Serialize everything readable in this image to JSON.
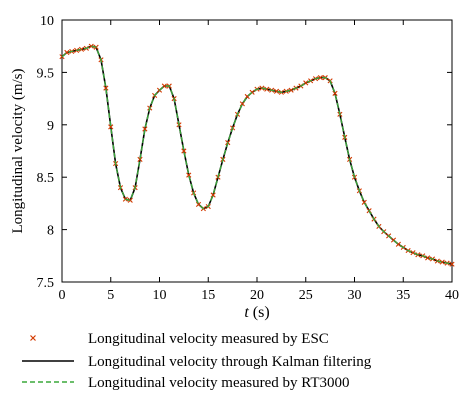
{
  "chart_data": {
    "type": "line",
    "xlabel": "t (s)",
    "xlabel_italic_part": "t",
    "xlabel_rest": " (s)",
    "ylabel": "Longitudinal velocity (m/s)",
    "xlim": [
      0,
      40
    ],
    "ylim": [
      7.5,
      10
    ],
    "xticks": [
      0,
      5,
      10,
      15,
      20,
      25,
      30,
      35,
      40
    ],
    "yticks": [
      7.5,
      8,
      8.5,
      9,
      9.5,
      10
    ],
    "xtick_labels": [
      "0",
      "5",
      "10",
      "15",
      "20",
      "25",
      "30",
      "35",
      "40"
    ],
    "ytick_labels": [
      "7.5",
      "8",
      "8.5",
      "9",
      "9.5",
      "10"
    ],
    "grid": false,
    "legend_position": "bottom",
    "x": [
      0,
      0.5,
      1,
      1.5,
      2,
      2.5,
      3,
      3.5,
      4,
      4.5,
      5,
      5.5,
      6,
      6.5,
      7,
      7.5,
      8,
      8.5,
      9,
      9.5,
      10,
      10.5,
      11,
      11.5,
      12,
      12.5,
      13,
      13.5,
      14,
      14.5,
      15,
      15.5,
      16,
      16.5,
      17,
      17.5,
      18,
      18.5,
      19,
      19.5,
      20,
      20.5,
      21,
      21.5,
      22,
      22.5,
      23,
      23.5,
      24,
      24.5,
      25,
      25.5,
      26,
      26.5,
      27,
      27.5,
      28,
      28.5,
      29,
      29.5,
      30,
      30.5,
      31,
      31.5,
      32,
      32.5,
      33,
      33.5,
      34,
      34.5,
      35,
      35.5,
      36,
      36.5,
      37,
      37.5,
      38,
      38.5,
      39,
      39.5,
      40
    ],
    "series": [
      {
        "name": "Longitudinal velocity measured by ESC",
        "style": "marker-x",
        "color": "#d43a00",
        "values": [
          9.65,
          9.69,
          9.7,
          9.71,
          9.72,
          9.73,
          9.75,
          9.74,
          9.62,
          9.35,
          8.98,
          8.63,
          8.4,
          8.29,
          8.28,
          8.4,
          8.67,
          8.96,
          9.16,
          9.28,
          9.33,
          9.37,
          9.37,
          9.25,
          9.0,
          8.75,
          8.52,
          8.35,
          8.24,
          8.2,
          8.22,
          8.33,
          8.5,
          8.67,
          8.83,
          8.97,
          9.1,
          9.2,
          9.27,
          9.31,
          9.34,
          9.35,
          9.34,
          9.33,
          9.32,
          9.31,
          9.32,
          9.33,
          9.35,
          9.37,
          9.4,
          9.42,
          9.44,
          9.45,
          9.45,
          9.42,
          9.3,
          9.1,
          8.88,
          8.67,
          8.5,
          8.37,
          8.26,
          8.18,
          8.1,
          8.03,
          7.98,
          7.94,
          7.9,
          7.86,
          7.83,
          7.8,
          7.78,
          7.76,
          7.75,
          7.73,
          7.72,
          7.7,
          7.69,
          7.68,
          7.67
        ]
      },
      {
        "name": "Longitudinal velocity through Kalman filtering",
        "style": "solid",
        "color": "#000000",
        "values": [
          9.65,
          9.69,
          9.7,
          9.71,
          9.72,
          9.73,
          9.75,
          9.74,
          9.62,
          9.35,
          8.98,
          8.63,
          8.4,
          8.29,
          8.28,
          8.4,
          8.67,
          8.96,
          9.16,
          9.28,
          9.33,
          9.37,
          9.37,
          9.25,
          9.0,
          8.75,
          8.52,
          8.35,
          8.24,
          8.2,
          8.22,
          8.33,
          8.5,
          8.67,
          8.83,
          8.97,
          9.1,
          9.2,
          9.27,
          9.31,
          9.34,
          9.35,
          9.34,
          9.33,
          9.32,
          9.31,
          9.32,
          9.33,
          9.35,
          9.37,
          9.4,
          9.42,
          9.44,
          9.45,
          9.45,
          9.42,
          9.3,
          9.1,
          8.88,
          8.67,
          8.5,
          8.37,
          8.26,
          8.18,
          8.1,
          8.03,
          7.98,
          7.94,
          7.9,
          7.86,
          7.83,
          7.8,
          7.78,
          7.76,
          7.75,
          7.73,
          7.72,
          7.7,
          7.69,
          7.68,
          7.67
        ]
      },
      {
        "name": "Longitudinal velocity measured by RT3000",
        "style": "dashed",
        "color": "#3aa83a",
        "values": [
          9.65,
          9.69,
          9.7,
          9.71,
          9.72,
          9.73,
          9.75,
          9.74,
          9.62,
          9.35,
          8.98,
          8.63,
          8.4,
          8.29,
          8.28,
          8.4,
          8.67,
          8.96,
          9.16,
          9.28,
          9.33,
          9.37,
          9.37,
          9.25,
          9.0,
          8.75,
          8.52,
          8.35,
          8.24,
          8.2,
          8.22,
          8.33,
          8.5,
          8.67,
          8.83,
          8.97,
          9.1,
          9.2,
          9.27,
          9.31,
          9.34,
          9.35,
          9.34,
          9.33,
          9.32,
          9.31,
          9.32,
          9.33,
          9.35,
          9.37,
          9.4,
          9.42,
          9.44,
          9.45,
          9.45,
          9.42,
          9.3,
          9.1,
          8.88,
          8.67,
          8.5,
          8.37,
          8.26,
          8.18,
          8.1,
          8.03,
          7.98,
          7.94,
          7.9,
          7.86,
          7.83,
          7.8,
          7.78,
          7.76,
          7.75,
          7.73,
          7.72,
          7.7,
          7.69,
          7.68,
          7.67
        ]
      }
    ]
  }
}
